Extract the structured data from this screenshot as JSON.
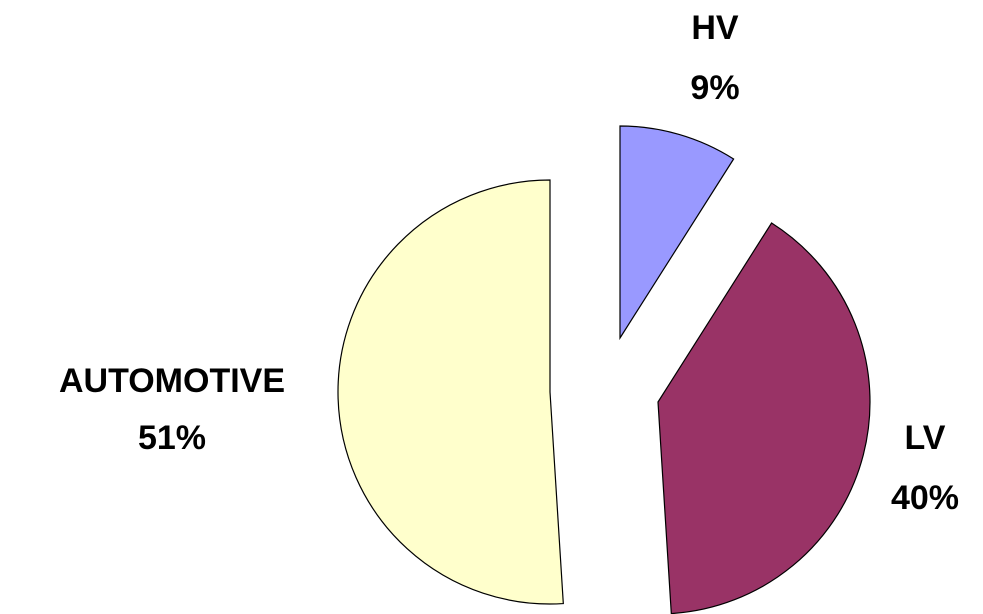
{
  "chart_data": {
    "type": "pie",
    "categories": [
      "HV",
      "LV",
      "AUTOMOTIVE"
    ],
    "values": [
      9,
      40,
      51
    ],
    "value_labels": [
      "9%",
      "40%",
      "51%"
    ],
    "colors": [
      "#9999ff",
      "#993366",
      "#ffffcc"
    ]
  }
}
